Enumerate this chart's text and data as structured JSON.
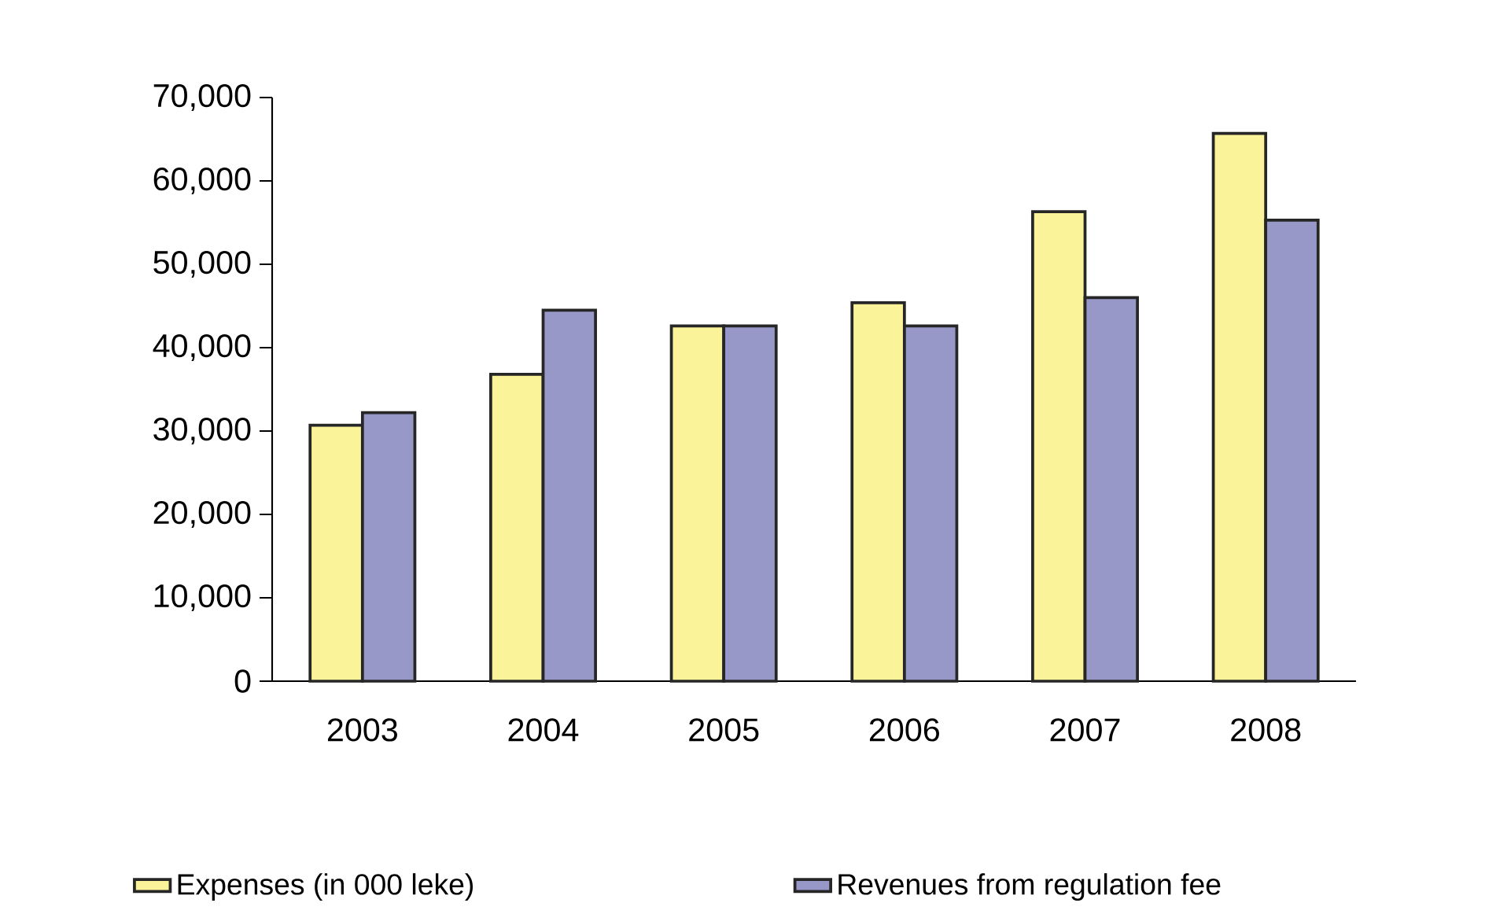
{
  "chart_data": {
    "type": "bar",
    "categories": [
      "2003",
      "2004",
      "2005",
      "2006",
      "2007",
      "2008"
    ],
    "series": [
      {
        "name": "Expenses (in 000 leke)",
        "color": "#faf39a",
        "values": [
          30700,
          36800,
          42600,
          45400,
          56300,
          65700
        ]
      },
      {
        "name": "Revenues from regulation fee",
        "color": "#9898c8",
        "values": [
          32200,
          44500,
          42600,
          42600,
          46000,
          55300
        ]
      }
    ],
    "ylim": [
      0,
      70000
    ],
    "yticks": [
      0,
      {
        "value": 10000,
        "label": "10,000"
      },
      {
        "value": 20000,
        "label": "20,000"
      },
      {
        "value": 30000,
        "label": "30,000"
      },
      {
        "value": 40000,
        "label": "40,000"
      },
      {
        "value": 50000,
        "label": "50,000"
      },
      {
        "value": 60000,
        "label": "60,000"
      },
      {
        "value": 70000,
        "label": "70,000"
      }
    ],
    "grid": false,
    "legend": "bottom"
  }
}
